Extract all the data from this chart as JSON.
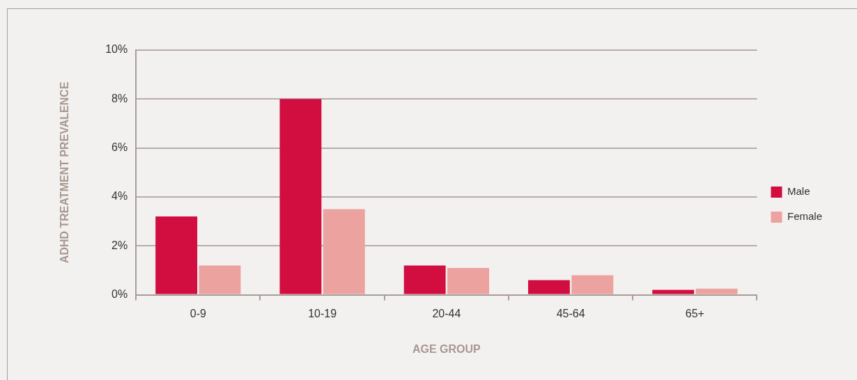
{
  "chart_data": {
    "type": "bar",
    "xlabel": "AGE GROUP",
    "ylabel": "ADHD TREATMENT PREVALENCE",
    "categories": [
      "0-9",
      "10-19",
      "20-44",
      "45-64",
      "65+"
    ],
    "series": [
      {
        "name": "Male",
        "color": "#d20d40",
        "values": [
          3.2,
          8.0,
          1.2,
          0.6,
          0.2
        ]
      },
      {
        "name": "Female",
        "color": "#eca29f",
        "values": [
          1.2,
          3.5,
          1.1,
          0.8,
          0.25
        ]
      }
    ],
    "ylim": [
      0,
      10
    ],
    "yticks": [
      {
        "value": 0,
        "label": "0%"
      },
      {
        "value": 2,
        "label": "2%"
      },
      {
        "value": 4,
        "label": "4%"
      },
      {
        "value": 6,
        "label": "6%"
      },
      {
        "value": 8,
        "label": "8%"
      },
      {
        "value": 10,
        "label": "10%"
      }
    ],
    "grid": "y",
    "legend": "right"
  }
}
